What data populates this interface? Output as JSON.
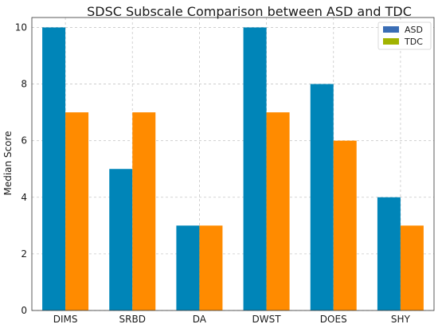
{
  "chart_data": {
    "type": "bar",
    "title": "SDSC Subscale Comparison between ASD and TDC",
    "xlabel": "",
    "ylabel": "Median Score",
    "categories": [
      "DIMS",
      "SRBD",
      "DA",
      "DWST",
      "DOES",
      "SHY"
    ],
    "series": [
      {
        "name": "ASD",
        "values": [
          10,
          5,
          3,
          10,
          8,
          4
        ],
        "color": "#0085b8",
        "legend_color": "#3a6db5"
      },
      {
        "name": "TDC",
        "values": [
          7,
          7,
          3,
          7,
          6,
          3
        ],
        "color": "#ff8b00",
        "legend_color": "#a1b300"
      }
    ],
    "ylim": [
      0,
      10.35
    ],
    "yticks": [
      0,
      2,
      4,
      6,
      8,
      10
    ],
    "grid": true,
    "legend_position": "top-right"
  }
}
